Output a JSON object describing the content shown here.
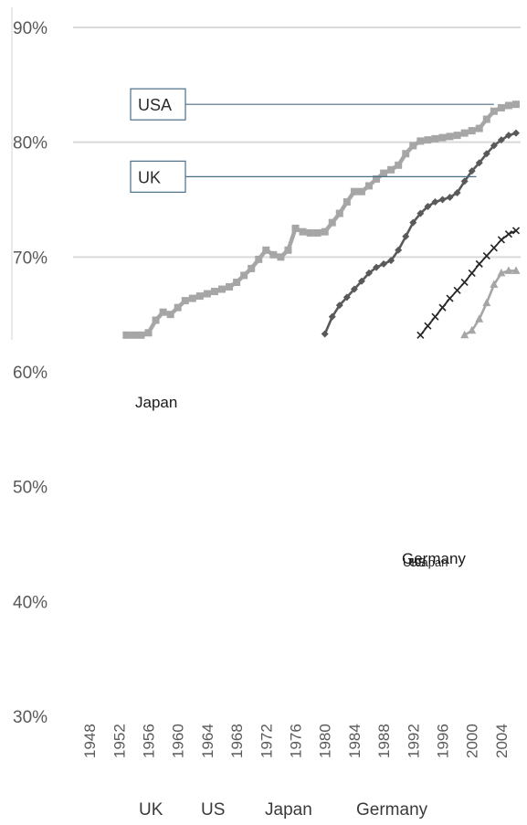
{
  "chart_data": {
    "type": "line",
    "title": "",
    "xlabel": "",
    "ylabel": "",
    "ylim": [
      0.3,
      0.9
    ],
    "xlim": [
      1946,
      2008
    ],
    "y_ticks": [
      "30%",
      "40%",
      "50%",
      "60%",
      "70%",
      "80%",
      "90%"
    ],
    "y_tick_values": [
      0.3,
      0.4,
      0.5,
      0.6,
      0.7,
      0.8,
      0.9
    ],
    "x_ticks": [
      "1948",
      "1952",
      "1956",
      "1960",
      "1964",
      "1968",
      "1972",
      "1976",
      "1980",
      "1984",
      "1988",
      "1992",
      "1996",
      "2000",
      "2004"
    ],
    "x_tick_values": [
      1948,
      1952,
      1956,
      1960,
      1964,
      1968,
      1972,
      1976,
      1980,
      1984,
      1988,
      1992,
      1996,
      2000,
      2004
    ],
    "grid": "horizontal",
    "legend_position": "bottom",
    "legend": [
      "UK",
      "US",
      "Japan",
      "Germany"
    ],
    "callouts": [
      {
        "text": "USA",
        "series": "US"
      },
      {
        "text": "UK",
        "series": "UK"
      }
    ],
    "labels": [
      {
        "text": "Japan"
      },
      {
        "text": "Germany"
      }
    ],
    "series": [
      {
        "name": "US",
        "color": "#a6a6a6",
        "marker": "square",
        "x": [
          1953,
          1954,
          1955,
          1956,
          1957,
          1958,
          1959,
          1960,
          1961,
          1962,
          1963,
          1964,
          1965,
          1966,
          1967,
          1968,
          1969,
          1970,
          1971,
          1972,
          1973,
          1974,
          1975,
          1976,
          1977,
          1978,
          1979,
          1980,
          1981,
          1982,
          1983,
          1984,
          1985,
          1986,
          1987,
          1988,
          1989,
          1990,
          1991,
          1992,
          1993,
          1994,
          1995,
          1996,
          1997,
          1998,
          1999,
          2000,
          2001,
          2002,
          2003,
          2004,
          2005,
          2006
        ],
        "values": [
          0.632,
          0.632,
          0.632,
          0.634,
          0.645,
          0.652,
          0.65,
          0.656,
          0.662,
          0.664,
          0.666,
          0.668,
          0.67,
          0.672,
          0.674,
          0.678,
          0.684,
          0.69,
          0.698,
          0.706,
          0.702,
          0.7,
          0.706,
          0.725,
          0.722,
          0.721,
          0.721,
          0.722,
          0.73,
          0.738,
          0.748,
          0.757,
          0.757,
          0.762,
          0.768,
          0.773,
          0.776,
          0.78,
          0.79,
          0.797,
          0.801,
          0.802,
          0.803,
          0.804,
          0.805,
          0.806,
          0.808,
          0.81,
          0.812,
          0.82,
          0.827,
          0.83,
          0.832,
          0.833
        ]
      },
      {
        "name": "UK",
        "color": "#595959",
        "marker": "diamond",
        "x": [
          1980,
          1981,
          1982,
          1983,
          1984,
          1985,
          1986,
          1987,
          1988,
          1989,
          1990,
          1991,
          1992,
          1993,
          1994,
          1995,
          1996,
          1997,
          1998,
          1999,
          2000,
          2001,
          2002,
          2003,
          2004,
          2005,
          2006
        ],
        "values": [
          0.633,
          0.648,
          0.658,
          0.665,
          0.672,
          0.679,
          0.686,
          0.691,
          0.694,
          0.697,
          0.706,
          0.718,
          0.73,
          0.738,
          0.744,
          0.748,
          0.75,
          0.752,
          0.756,
          0.766,
          0.775,
          0.782,
          0.79,
          0.797,
          0.802,
          0.806,
          0.808
        ]
      },
      {
        "name": "Japan",
        "color": "#262626",
        "marker": "x",
        "x": [
          1993,
          1994,
          1995,
          1996,
          1997,
          1998,
          1999,
          2000,
          2001,
          2002,
          2003,
          2004,
          2005,
          2006
        ],
        "values": [
          0.632,
          0.64,
          0.648,
          0.656,
          0.664,
          0.671,
          0.678,
          0.686,
          0.694,
          0.701,
          0.708,
          0.715,
          0.72,
          0.723
        ]
      },
      {
        "name": "Germany",
        "color": "#a6a6a6",
        "marker": "triangle",
        "x": [
          1999,
          2000,
          2001,
          2002,
          2003,
          2004,
          2005,
          2006
        ],
        "values": [
          0.632,
          0.636,
          0.646,
          0.66,
          0.676,
          0.686,
          0.688,
          0.688
        ]
      }
    ]
  }
}
